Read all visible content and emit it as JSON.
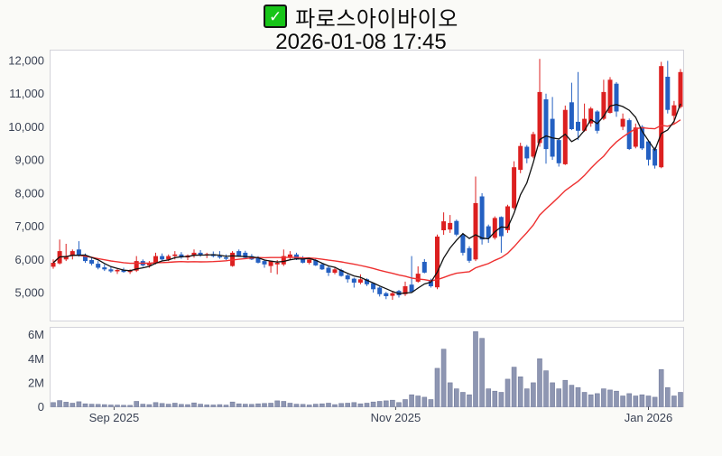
{
  "header": {
    "symbol_name": "파로스아이바이오",
    "timestamp": "2026-01-08 17:45",
    "checkbox_checked": true,
    "checkmark_glyph": "✓"
  },
  "colors": {
    "background": "#fafaf7",
    "panel_bg": "#ffffff",
    "panel_border": "#d3d3da",
    "up_candle": "#dc2020",
    "down_candle": "#2460c2",
    "ma_fast": "#111111",
    "ma_slow": "#ee3030",
    "volume_fill": "#8e96b2",
    "volume_stroke": "#767e9e",
    "axis_text": "#3a4254",
    "checkbox_green": "#17c518"
  },
  "chart_data": {
    "type": "candlestick",
    "title": "파로스아이바이오",
    "datetime_label": "2026-01-08 17:45",
    "legend_position": "top-center",
    "grid": false,
    "price_axis": {
      "side": "left",
      "range_hint": [
        4200,
        12300
      ],
      "ticks": [
        {
          "value": 12000,
          "label": "12,000"
        },
        {
          "value": 11000,
          "label": "11,000"
        },
        {
          "value": 10000,
          "label": "10,000"
        },
        {
          "value": 9000,
          "label": "9,000"
        },
        {
          "value": 8000,
          "label": "8,000"
        },
        {
          "value": 7000,
          "label": "7,000"
        },
        {
          "value": 6000,
          "label": "6,000"
        },
        {
          "value": 5000,
          "label": "5,000"
        }
      ]
    },
    "volume_axis": {
      "side": "left",
      "ticks": [
        {
          "value": 6000000,
          "label": "6M"
        },
        {
          "value": 4000000,
          "label": "4M"
        },
        {
          "value": 2000000,
          "label": "2M"
        },
        {
          "value": 0,
          "label": "0"
        }
      ]
    },
    "x_axis": {
      "ticks": [
        {
          "label": "Sep 2025",
          "index": 9.5
        },
        {
          "label": "Nov 2025",
          "index": 53.5
        },
        {
          "label": "Jan 2026",
          "index": 93
        }
      ]
    },
    "ma_periods": {
      "fast": 5,
      "slow": 20
    },
    "candles_format": [
      "open",
      "high",
      "low",
      "close",
      "volume"
    ],
    "candles": [
      [
        5780,
        6000,
        5720,
        5900,
        350000
      ],
      [
        5880,
        6600,
        5850,
        6250,
        520000
      ],
      [
        6000,
        6470,
        5950,
        6100,
        380000
      ],
      [
        6100,
        6300,
        6000,
        6250,
        300000
      ],
      [
        6300,
        6550,
        6080,
        6120,
        420000
      ],
      [
        6120,
        6180,
        5900,
        5950,
        250000
      ],
      [
        5980,
        6050,
        5820,
        5870,
        220000
      ],
      [
        5870,
        5950,
        5700,
        5750,
        200000
      ],
      [
        5760,
        5850,
        5650,
        5700,
        180000
      ],
      [
        5700,
        5780,
        5600,
        5640,
        150000
      ],
      [
        5640,
        5720,
        5560,
        5680,
        140000
      ],
      [
        5680,
        5750,
        5600,
        5620,
        130000
      ],
      [
        5620,
        5700,
        5560,
        5660,
        120000
      ],
      [
        5660,
        6100,
        5620,
        5950,
        450000
      ],
      [
        5950,
        6000,
        5780,
        5820,
        220000
      ],
      [
        5820,
        5950,
        5750,
        5900,
        180000
      ],
      [
        5900,
        6200,
        5850,
        6100,
        350000
      ],
      [
        6100,
        6180,
        5950,
        6000,
        280000
      ],
      [
        6000,
        6150,
        5950,
        6100,
        220000
      ],
      [
        6100,
        6250,
        6000,
        6150,
        300000
      ],
      [
        6150,
        6220,
        6020,
        6060,
        200000
      ],
      [
        6060,
        6150,
        5980,
        6120,
        180000
      ],
      [
        6120,
        6300,
        6050,
        6200,
        320000
      ],
      [
        6200,
        6280,
        6080,
        6120,
        220000
      ],
      [
        6120,
        6200,
        6040,
        6160,
        160000
      ],
      [
        6160,
        6240,
        6060,
        6100,
        150000
      ],
      [
        6100,
        6250,
        6020,
        6060,
        180000
      ],
      [
        6060,
        6150,
        5980,
        6020,
        140000
      ],
      [
        5800,
        6250,
        5780,
        6200,
        400000
      ],
      [
        6250,
        6300,
        6080,
        6100,
        250000
      ],
      [
        6200,
        6260,
        6030,
        6050,
        220000
      ],
      [
        6100,
        6160,
        5980,
        6000,
        200000
      ],
      [
        6050,
        6100,
        5880,
        5900,
        250000
      ],
      [
        5950,
        6000,
        5750,
        5850,
        280000
      ],
      [
        5800,
        5960,
        5600,
        5950,
        300000
      ],
      [
        5850,
        5980,
        5550,
        5900,
        500000
      ],
      [
        5850,
        6300,
        5800,
        6100,
        450000
      ],
      [
        6050,
        6250,
        6000,
        6150,
        300000
      ],
      [
        6150,
        6200,
        5980,
        6000,
        220000
      ],
      [
        6050,
        6100,
        5880,
        5900,
        200000
      ],
      [
        5900,
        6050,
        5850,
        6000,
        150000
      ],
      [
        5980,
        6020,
        5800,
        5820,
        220000
      ],
      [
        5850,
        5900,
        5680,
        5700,
        250000
      ],
      [
        5750,
        5800,
        5500,
        5600,
        300000
      ],
      [
        5600,
        5750,
        5550,
        5700,
        180000
      ],
      [
        5680,
        5720,
        5480,
        5500,
        280000
      ],
      [
        5520,
        5560,
        5300,
        5400,
        300000
      ],
      [
        5420,
        5450,
        5150,
        5300,
        350000
      ],
      [
        5300,
        5550,
        5250,
        5400,
        250000
      ],
      [
        5400,
        5430,
        5200,
        5250,
        300000
      ],
      [
        5280,
        5300,
        5000,
        5100,
        400000
      ],
      [
        5150,
        5180,
        4880,
        4950,
        450000
      ],
      [
        4980,
        5020,
        4800,
        4890,
        500000
      ],
      [
        4900,
        5050,
        4780,
        4980,
        550000
      ],
      [
        5050,
        5080,
        4850,
        4920,
        350000
      ],
      [
        4950,
        5330,
        4900,
        5190,
        600000
      ],
      [
        5240,
        6100,
        5000,
        5020,
        1000000
      ],
      [
        5330,
        5790,
        5300,
        5570,
        900000
      ],
      [
        5925,
        6010,
        5580,
        5600,
        800000
      ],
      [
        5380,
        5420,
        5150,
        5190,
        600000
      ],
      [
        5160,
        6750,
        5100,
        6690,
        3200000
      ],
      [
        6880,
        7420,
        6740,
        7150,
        4800000
      ],
      [
        6900,
        7340,
        6800,
        7100,
        2000000
      ],
      [
        7160,
        7200,
        6700,
        6750,
        1500000
      ],
      [
        6740,
        6800,
        6120,
        6200,
        1200000
      ],
      [
        6340,
        6400,
        5900,
        5960,
        1000000
      ],
      [
        6000,
        8500,
        5950,
        7700,
        6260000
      ],
      [
        7900,
        8000,
        6450,
        6600,
        5700000
      ],
      [
        7000,
        7050,
        6500,
        6650,
        1500000
      ],
      [
        6650,
        7300,
        6600,
        7250,
        1300000
      ],
      [
        7280,
        7300,
        6200,
        6700,
        1200000
      ],
      [
        6880,
        7650,
        6800,
        7600,
        2300000
      ],
      [
        7550,
        8960,
        7500,
        8780,
        3300000
      ],
      [
        8700,
        9520,
        8600,
        9420,
        2500000
      ],
      [
        9400,
        9450,
        8900,
        9050,
        1500000
      ],
      [
        9100,
        9850,
        9050,
        9780,
        2000000
      ],
      [
        9510,
        12050,
        9400,
        11050,
        4000000
      ],
      [
        10830,
        11000,
        8890,
        9330,
        3000000
      ],
      [
        10240,
        10900,
        9000,
        9100,
        2000000
      ],
      [
        9600,
        9650,
        8800,
        8900,
        1500000
      ],
      [
        8870,
        10640,
        8850,
        10510,
        2200000
      ],
      [
        10740,
        11330,
        9900,
        9930,
        1800000
      ],
      [
        10150,
        11650,
        9600,
        9880,
        1600000
      ],
      [
        9880,
        10700,
        9850,
        10240,
        1200000
      ],
      [
        10100,
        10600,
        10000,
        10550,
        1000000
      ],
      [
        10460,
        10500,
        9800,
        9880,
        1100000
      ],
      [
        10240,
        11420,
        10200,
        11050,
        1500000
      ],
      [
        10420,
        11500,
        10400,
        11420,
        1400000
      ],
      [
        11300,
        11350,
        10300,
        10460,
        1300000
      ],
      [
        10000,
        10400,
        9900,
        10240,
        900000
      ],
      [
        10200,
        10250,
        9300,
        9330,
        1100000
      ],
      [
        9400,
        10100,
        9350,
        9980,
        900000
      ],
      [
        10000,
        10050,
        9300,
        9350,
        1000000
      ],
      [
        9560,
        9600,
        8830,
        9010,
        900000
      ],
      [
        9330,
        9380,
        8740,
        8830,
        800000
      ],
      [
        8780,
        11960,
        8750,
        11830,
        3100000
      ],
      [
        11510,
        11990,
        10400,
        10510,
        1600000
      ],
      [
        10330,
        10780,
        10100,
        10650,
        900000
      ],
      [
        10600,
        11740,
        10550,
        11650,
        1200000
      ]
    ]
  }
}
